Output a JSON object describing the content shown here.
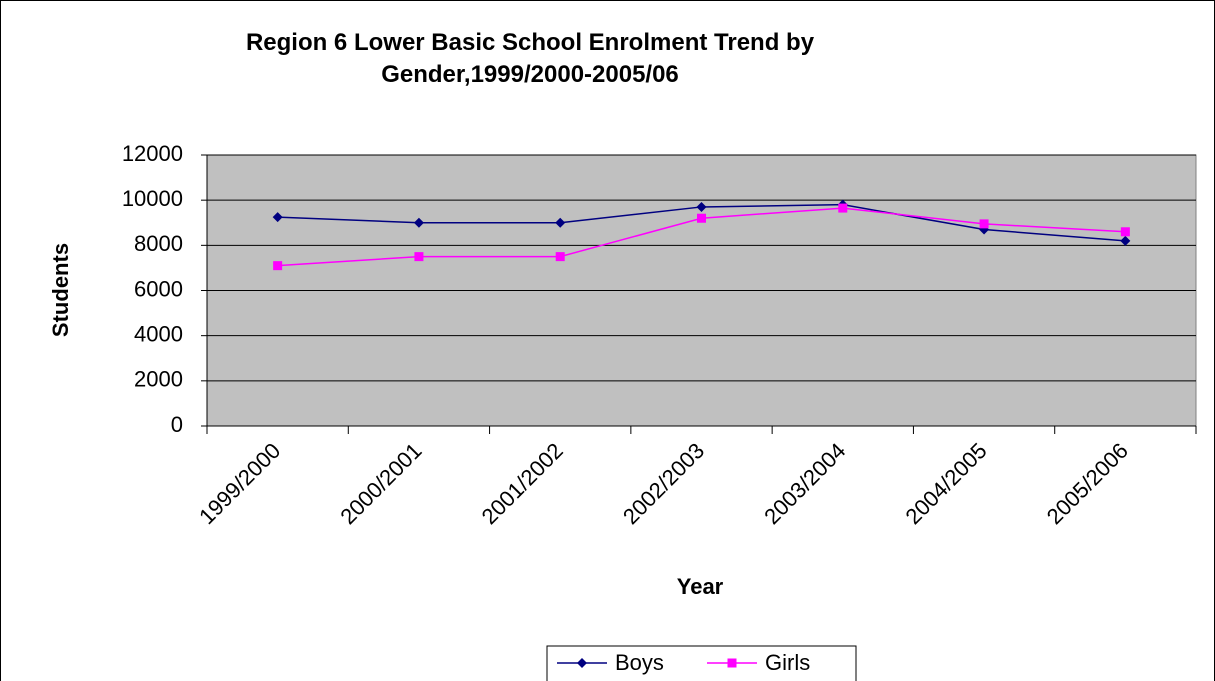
{
  "chart_data": {
    "type": "line",
    "title": "Region 6 Lower Basic School Enrolment Trend by Gender,1999/2000-2005/06",
    "x_label": "Year",
    "y_label": "Students",
    "categories": [
      "1999/2000",
      "2000/2001",
      "2001/2002",
      "2002/2003",
      "2003/2004",
      "2004/2005",
      "2005/2006"
    ],
    "series": [
      {
        "name": "Boys",
        "color": "#000080",
        "marker": "diamond",
        "values": [
          9250,
          9000,
          9000,
          9700,
          9800,
          8700,
          8200
        ]
      },
      {
        "name": "Girls",
        "color": "#ff00ff",
        "marker": "square",
        "values": [
          7100,
          7500,
          7500,
          9200,
          9650,
          8950,
          8600
        ]
      }
    ],
    "ylim": [
      0,
      12000
    ],
    "yticks": [
      0,
      2000,
      4000,
      6000,
      8000,
      10000,
      12000
    ],
    "grid": true,
    "legend": "bottom"
  }
}
